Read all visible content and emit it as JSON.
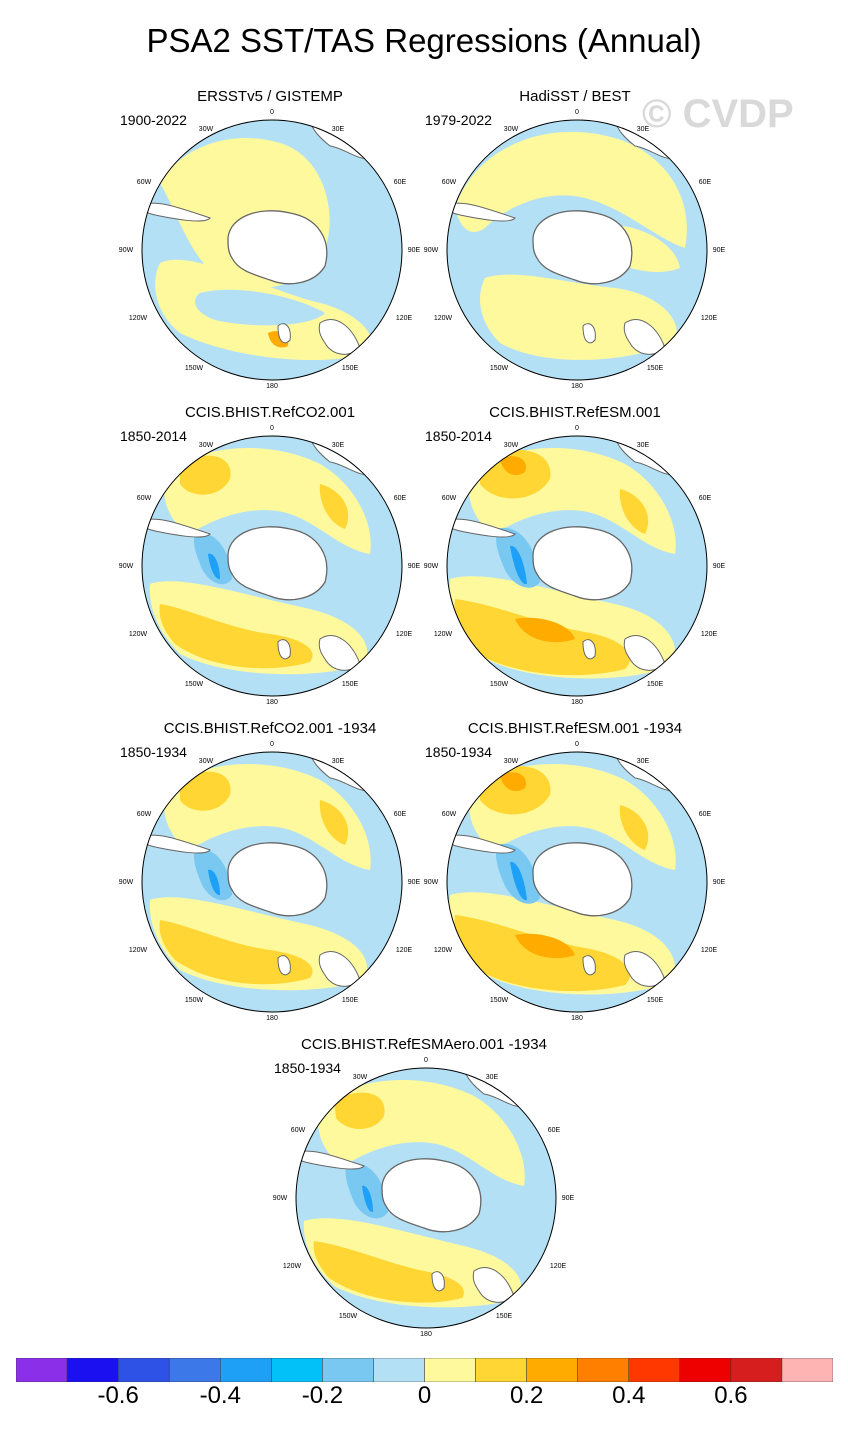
{
  "title": "PSA2 SST/TAS Regressions (Annual)",
  "watermark": "© CVDP",
  "panels": [
    {
      "title": "ERSSTv5 / GISTEMP",
      "period": "1900-2022",
      "pattern": "obs1"
    },
    {
      "title": "HadiSST / BEST",
      "period": "1979-2022",
      "pattern": "obs2"
    },
    {
      "title": "CCIS.BHIST.RefCO2.001",
      "period": "1850-2014",
      "pattern": "model"
    },
    {
      "title": "CCIS.BHIST.RefESM.001",
      "period": "1850-2014",
      "pattern": "model_strong"
    },
    {
      "title": "CCIS.BHIST.RefCO2.001 -1934",
      "period": "1850-1934",
      "pattern": "model"
    },
    {
      "title": "CCIS.BHIST.RefESM.001 -1934",
      "period": "1850-1934",
      "pattern": "model_strong"
    },
    {
      "title": "CCIS.BHIST.RefESMAero.001 -1934",
      "period": "1850-1934",
      "pattern": "model_weak"
    }
  ],
  "map_labels": {
    "top": "0",
    "top_left": "30W",
    "top_right": "30E",
    "upper_left": "60W",
    "upper_right": "60E",
    "left": "90W",
    "right": "90E",
    "lower_left": "120W",
    "lower_right": "120E",
    "bottom_left": "150W",
    "bottom_right": "150E",
    "bottom": "180"
  },
  "colorbar": {
    "colors": [
      "#8B2FE8",
      "#1A10F0",
      "#2F52E6",
      "#3C78E8",
      "#1FA0F7",
      "#02C1F9",
      "#78C8F2",
      "#B4E0F5",
      "#FFF99E",
      "#FFD633",
      "#FFAB00",
      "#FF7F00",
      "#FF3800",
      "#EE0000",
      "#D71E1E",
      "#FFB4B4"
    ],
    "tick_labels": [
      "-0.6",
      "-0.4",
      "-0.2",
      "0",
      "0.2",
      "0.4",
      "0.6"
    ],
    "levels": [
      -0.7,
      -0.6,
      -0.5,
      -0.4,
      -0.3,
      -0.2,
      -0.1,
      0,
      0.1,
      0.2,
      0.3,
      0.4,
      0.5,
      0.6,
      0.7
    ]
  },
  "chart_data": {
    "type": "heatmap",
    "title": "PSA2 SST/TAS Regressions (Annual)",
    "projection": "South polar stereographic",
    "panels": [
      "ERSSTv5 / GISTEMP",
      "HadiSST / BEST",
      "CCIS.BHIST.RefCO2.001",
      "CCIS.BHIST.RefESM.001",
      "CCIS.BHIST.RefCO2.001 -1934",
      "CCIS.BHIST.RefESM.001 -1934",
      "CCIS.BHIST.RefESMAero.001 -1934"
    ],
    "colorbar_range": [
      -0.7,
      0.7
    ]
  }
}
